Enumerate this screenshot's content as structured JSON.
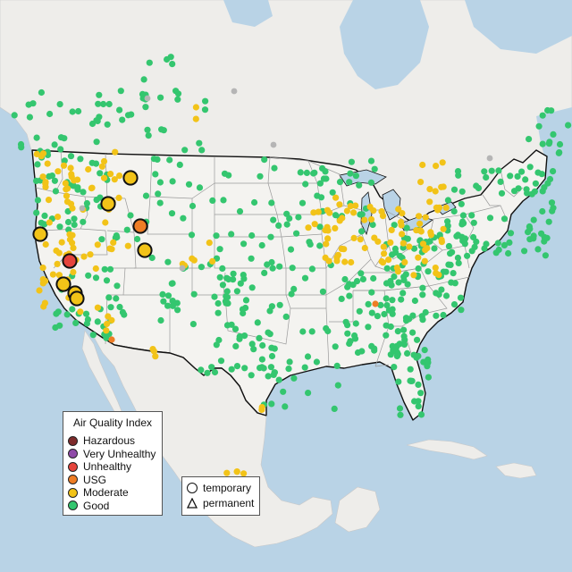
{
  "colors": {
    "water": "#b9d3e6",
    "land": "#eeedea",
    "us_land": "#f4f3f0",
    "borders": "#111111",
    "state_lines": "#9a9a9a",
    "hazardous": "#7e2b2b",
    "very_unhealthy": "#8f4aa8",
    "unhealthy": "#e5443c",
    "usg": "#ee7d25",
    "moderate": "#f2c318",
    "good": "#34c66f",
    "unknown": "#b5b5b5"
  },
  "legend": {
    "title": "Air Quality Index",
    "items": [
      {
        "label": "Hazardous",
        "color": "#7e2b2b"
      },
      {
        "label": "Very Unhealthy",
        "color": "#8f4aa8"
      },
      {
        "label": "Unhealthy",
        "color": "#e5443c"
      },
      {
        "label": "USG",
        "color": "#ee7d25"
      },
      {
        "label": "Moderate",
        "color": "#f2c318"
      },
      {
        "label": "Good",
        "color": "#34c66f"
      }
    ]
  },
  "type_legend": {
    "items": [
      {
        "label": "temporary",
        "shape": "circle"
      },
      {
        "label": "permanent",
        "shape": "triangle"
      }
    ]
  },
  "temporary_monitors": [
    {
      "category": "moderate"
    },
    {
      "category": "moderate"
    },
    {
      "category": "moderate"
    },
    {
      "category": "usg"
    },
    {
      "category": "moderate"
    },
    {
      "category": "unhealthy"
    },
    {
      "category": "moderate"
    },
    {
      "category": "moderate"
    },
    {
      "category": "moderate"
    }
  ]
}
